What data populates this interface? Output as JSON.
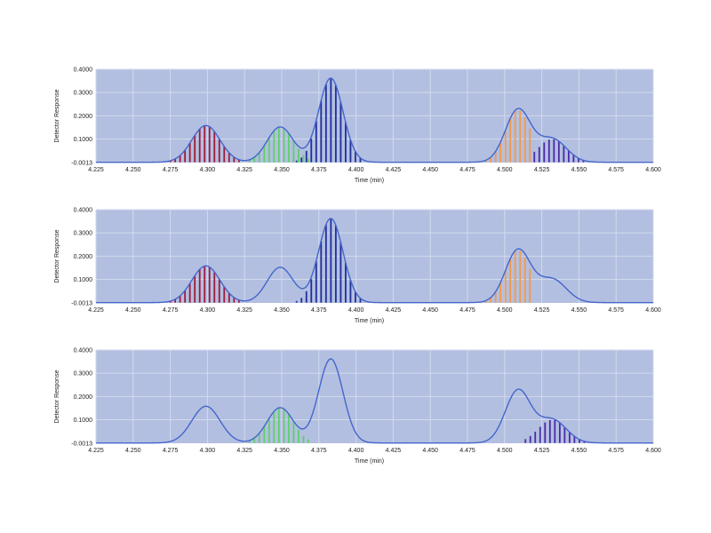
{
  "colors": {
    "plot_bg": "#b3bfe0",
    "grid": "#d2daee",
    "trace": "#4466cc",
    "peak_red": "#a01a3a",
    "peak_green": "#5fd06a",
    "peak_blue": "#1f2f9c",
    "peak_orange": "#f29a4a",
    "peak_purple": "#4b2aa8"
  },
  "chart_data": [
    {
      "type": "line",
      "title": "",
      "xlabel": "Time (min)",
      "ylabel": "Detector Response",
      "xlim": [
        4.225,
        4.6
      ],
      "ylim": [
        -0.0013,
        0.4
      ],
      "x_ticks": [
        "4.225",
        "4.250",
        "4.275",
        "4.300",
        "4.325",
        "4.350",
        "4.375",
        "4.400",
        "4.425",
        "4.450",
        "4.475",
        "4.500",
        "4.525",
        "4.550",
        "4.575",
        "4.600"
      ],
      "y_ticks": [
        "0.4000",
        "0.3000",
        "0.2000",
        "0.1000",
        "-0.0013"
      ],
      "grid": true,
      "legend": "none",
      "trace_peaks": [
        {
          "center": 4.299,
          "height": 0.158,
          "sigma": 0.0095
        },
        {
          "center": 4.349,
          "height": 0.152,
          "sigma": 0.0088
        },
        {
          "center": 4.383,
          "height": 0.362,
          "sigma": 0.0082
        },
        {
          "center": 4.509,
          "height": 0.226,
          "sigma": 0.0085
        },
        {
          "center": 4.532,
          "height": 0.1,
          "sigma": 0.0095
        }
      ],
      "shaded_peaks": [
        {
          "name": "red",
          "color": "#a01a3a",
          "center": 4.299,
          "height": 0.158,
          "sigma": 0.0095,
          "x_range": [
            4.275,
            4.323
          ]
        },
        {
          "name": "green",
          "color": "#5fd06a",
          "center": 4.349,
          "height": 0.152,
          "sigma": 0.0088,
          "x_range": [
            4.325,
            4.368
          ]
        },
        {
          "name": "blue",
          "color": "#1f2f9c",
          "center": 4.383,
          "height": 0.362,
          "sigma": 0.0082,
          "x_range": [
            4.36,
            4.405
          ]
        },
        {
          "name": "orange",
          "color": "#f29a4a",
          "center": 4.509,
          "height": 0.226,
          "sigma": 0.0085,
          "x_range": [
            4.484,
            4.52
          ]
        },
        {
          "name": "purple",
          "color": "#4b2aa8",
          "center": 4.532,
          "height": 0.1,
          "sigma": 0.0095,
          "x_range": [
            4.52,
            4.555
          ]
        }
      ]
    },
    {
      "type": "line",
      "title": "",
      "xlabel": "Time (min)",
      "ylabel": "Detector Response",
      "xlim": [
        4.225,
        4.6
      ],
      "ylim": [
        -0.0013,
        0.4
      ],
      "x_ticks": [
        "4.225",
        "4.250",
        "4.275",
        "4.300",
        "4.325",
        "4.350",
        "4.375",
        "4.400",
        "4.425",
        "4.450",
        "4.475",
        "4.500",
        "4.525",
        "4.550",
        "4.575",
        "4.600"
      ],
      "y_ticks": [
        "0.4000",
        "0.3000",
        "0.2000",
        "0.1000",
        "-0.0013"
      ],
      "grid": true,
      "legend": "none",
      "trace_peaks": [
        {
          "center": 4.299,
          "height": 0.158,
          "sigma": 0.0095
        },
        {
          "center": 4.349,
          "height": 0.152,
          "sigma": 0.0088
        },
        {
          "center": 4.383,
          "height": 0.362,
          "sigma": 0.0082
        },
        {
          "center": 4.509,
          "height": 0.226,
          "sigma": 0.0085
        },
        {
          "center": 4.532,
          "height": 0.1,
          "sigma": 0.0095
        }
      ],
      "shaded_peaks": [
        {
          "name": "red",
          "color": "#a01a3a",
          "center": 4.299,
          "height": 0.158,
          "sigma": 0.0095,
          "x_range": [
            4.275,
            4.323
          ]
        },
        {
          "name": "blue",
          "color": "#1f2f9c",
          "center": 4.383,
          "height": 0.362,
          "sigma": 0.0082,
          "x_range": [
            4.36,
            4.405
          ]
        },
        {
          "name": "orange",
          "color": "#f29a4a",
          "center": 4.509,
          "height": 0.226,
          "sigma": 0.0085,
          "x_range": [
            4.484,
            4.52
          ]
        }
      ]
    },
    {
      "type": "line",
      "title": "",
      "xlabel": "Time (min)",
      "ylabel": "Detector Response",
      "xlim": [
        4.225,
        4.6
      ],
      "ylim": [
        -0.0013,
        0.4
      ],
      "x_ticks": [
        "4.225",
        "4.250",
        "4.275",
        "4.300",
        "4.325",
        "4.350",
        "4.375",
        "4.400",
        "4.425",
        "4.450",
        "4.475",
        "4.500",
        "4.525",
        "4.550",
        "4.575",
        "4.600"
      ],
      "y_ticks": [
        "0.4000",
        "0.3000",
        "0.2000",
        "0.1000",
        "-0.0013"
      ],
      "grid": true,
      "legend": "none",
      "trace_peaks": [
        {
          "center": 4.299,
          "height": 0.158,
          "sigma": 0.0095
        },
        {
          "center": 4.349,
          "height": 0.152,
          "sigma": 0.0088
        },
        {
          "center": 4.383,
          "height": 0.362,
          "sigma": 0.0082
        },
        {
          "center": 4.509,
          "height": 0.226,
          "sigma": 0.0085
        },
        {
          "center": 4.532,
          "height": 0.1,
          "sigma": 0.0095
        }
      ],
      "shaded_peaks": [
        {
          "name": "green",
          "color": "#5fd06a",
          "center": 4.349,
          "height": 0.152,
          "sigma": 0.0088,
          "x_range": [
            4.325,
            4.37
          ]
        },
        {
          "name": "purple",
          "color": "#4b2aa8",
          "center": 4.532,
          "height": 0.1,
          "sigma": 0.0095,
          "x_range": [
            4.514,
            4.556
          ]
        }
      ]
    }
  ]
}
